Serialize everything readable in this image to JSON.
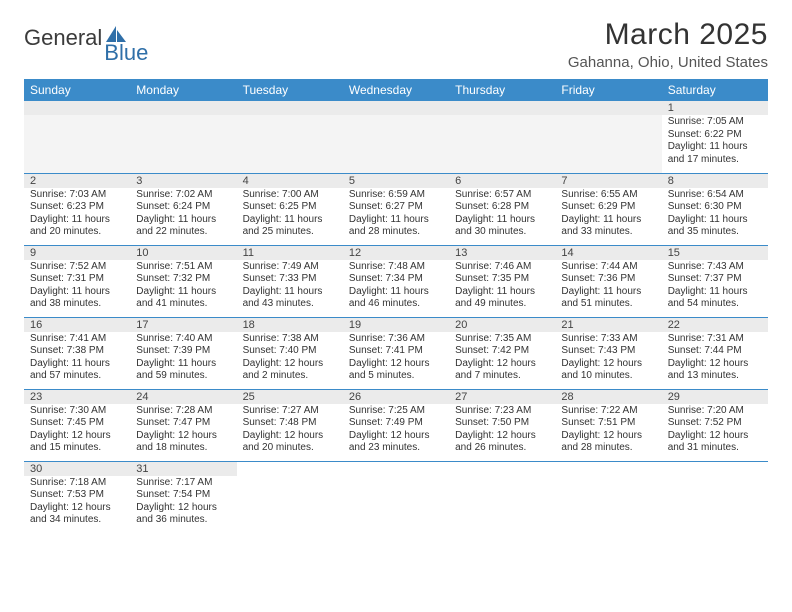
{
  "logo": {
    "part1": "General",
    "part2": "Blue"
  },
  "title": "March 2025",
  "location": "Gahanna, Ohio, United States",
  "colors": {
    "header_bg": "#3b8bc9",
    "header_text": "#ffffff",
    "daynum_bg": "#ebebeb",
    "border": "#3b8bc9",
    "text": "#333333",
    "logo_blue": "#2f6fa8"
  },
  "weekdays": [
    "Sunday",
    "Monday",
    "Tuesday",
    "Wednesday",
    "Thursday",
    "Friday",
    "Saturday"
  ],
  "weeks": [
    [
      null,
      null,
      null,
      null,
      null,
      null,
      {
        "n": 1,
        "sunrise": "7:05 AM",
        "sunset": "6:22 PM",
        "dl_h": 11,
        "dl_m": 17
      }
    ],
    [
      {
        "n": 2,
        "sunrise": "7:03 AM",
        "sunset": "6:23 PM",
        "dl_h": 11,
        "dl_m": 20
      },
      {
        "n": 3,
        "sunrise": "7:02 AM",
        "sunset": "6:24 PM",
        "dl_h": 11,
        "dl_m": 22
      },
      {
        "n": 4,
        "sunrise": "7:00 AM",
        "sunset": "6:25 PM",
        "dl_h": 11,
        "dl_m": 25
      },
      {
        "n": 5,
        "sunrise": "6:59 AM",
        "sunset": "6:27 PM",
        "dl_h": 11,
        "dl_m": 28
      },
      {
        "n": 6,
        "sunrise": "6:57 AM",
        "sunset": "6:28 PM",
        "dl_h": 11,
        "dl_m": 30
      },
      {
        "n": 7,
        "sunrise": "6:55 AM",
        "sunset": "6:29 PM",
        "dl_h": 11,
        "dl_m": 33
      },
      {
        "n": 8,
        "sunrise": "6:54 AM",
        "sunset": "6:30 PM",
        "dl_h": 11,
        "dl_m": 35
      }
    ],
    [
      {
        "n": 9,
        "sunrise": "7:52 AM",
        "sunset": "7:31 PM",
        "dl_h": 11,
        "dl_m": 38
      },
      {
        "n": 10,
        "sunrise": "7:51 AM",
        "sunset": "7:32 PM",
        "dl_h": 11,
        "dl_m": 41
      },
      {
        "n": 11,
        "sunrise": "7:49 AM",
        "sunset": "7:33 PM",
        "dl_h": 11,
        "dl_m": 43
      },
      {
        "n": 12,
        "sunrise": "7:48 AM",
        "sunset": "7:34 PM",
        "dl_h": 11,
        "dl_m": 46
      },
      {
        "n": 13,
        "sunrise": "7:46 AM",
        "sunset": "7:35 PM",
        "dl_h": 11,
        "dl_m": 49
      },
      {
        "n": 14,
        "sunrise": "7:44 AM",
        "sunset": "7:36 PM",
        "dl_h": 11,
        "dl_m": 51
      },
      {
        "n": 15,
        "sunrise": "7:43 AM",
        "sunset": "7:37 PM",
        "dl_h": 11,
        "dl_m": 54
      }
    ],
    [
      {
        "n": 16,
        "sunrise": "7:41 AM",
        "sunset": "7:38 PM",
        "dl_h": 11,
        "dl_m": 57
      },
      {
        "n": 17,
        "sunrise": "7:40 AM",
        "sunset": "7:39 PM",
        "dl_h": 11,
        "dl_m": 59
      },
      {
        "n": 18,
        "sunrise": "7:38 AM",
        "sunset": "7:40 PM",
        "dl_h": 12,
        "dl_m": 2
      },
      {
        "n": 19,
        "sunrise": "7:36 AM",
        "sunset": "7:41 PM",
        "dl_h": 12,
        "dl_m": 5
      },
      {
        "n": 20,
        "sunrise": "7:35 AM",
        "sunset": "7:42 PM",
        "dl_h": 12,
        "dl_m": 7
      },
      {
        "n": 21,
        "sunrise": "7:33 AM",
        "sunset": "7:43 PM",
        "dl_h": 12,
        "dl_m": 10
      },
      {
        "n": 22,
        "sunrise": "7:31 AM",
        "sunset": "7:44 PM",
        "dl_h": 12,
        "dl_m": 13
      }
    ],
    [
      {
        "n": 23,
        "sunrise": "7:30 AM",
        "sunset": "7:45 PM",
        "dl_h": 12,
        "dl_m": 15
      },
      {
        "n": 24,
        "sunrise": "7:28 AM",
        "sunset": "7:47 PM",
        "dl_h": 12,
        "dl_m": 18
      },
      {
        "n": 25,
        "sunrise": "7:27 AM",
        "sunset": "7:48 PM",
        "dl_h": 12,
        "dl_m": 20
      },
      {
        "n": 26,
        "sunrise": "7:25 AM",
        "sunset": "7:49 PM",
        "dl_h": 12,
        "dl_m": 23
      },
      {
        "n": 27,
        "sunrise": "7:23 AM",
        "sunset": "7:50 PM",
        "dl_h": 12,
        "dl_m": 26
      },
      {
        "n": 28,
        "sunrise": "7:22 AM",
        "sunset": "7:51 PM",
        "dl_h": 12,
        "dl_m": 28
      },
      {
        "n": 29,
        "sunrise": "7:20 AM",
        "sunset": "7:52 PM",
        "dl_h": 12,
        "dl_m": 31
      }
    ],
    [
      {
        "n": 30,
        "sunrise": "7:18 AM",
        "sunset": "7:53 PM",
        "dl_h": 12,
        "dl_m": 34
      },
      {
        "n": 31,
        "sunrise": "7:17 AM",
        "sunset": "7:54 PM",
        "dl_h": 12,
        "dl_m": 36
      },
      null,
      null,
      null,
      null,
      null
    ]
  ],
  "labels": {
    "sunrise": "Sunrise:",
    "sunset": "Sunset:",
    "daylight": "Daylight:"
  }
}
